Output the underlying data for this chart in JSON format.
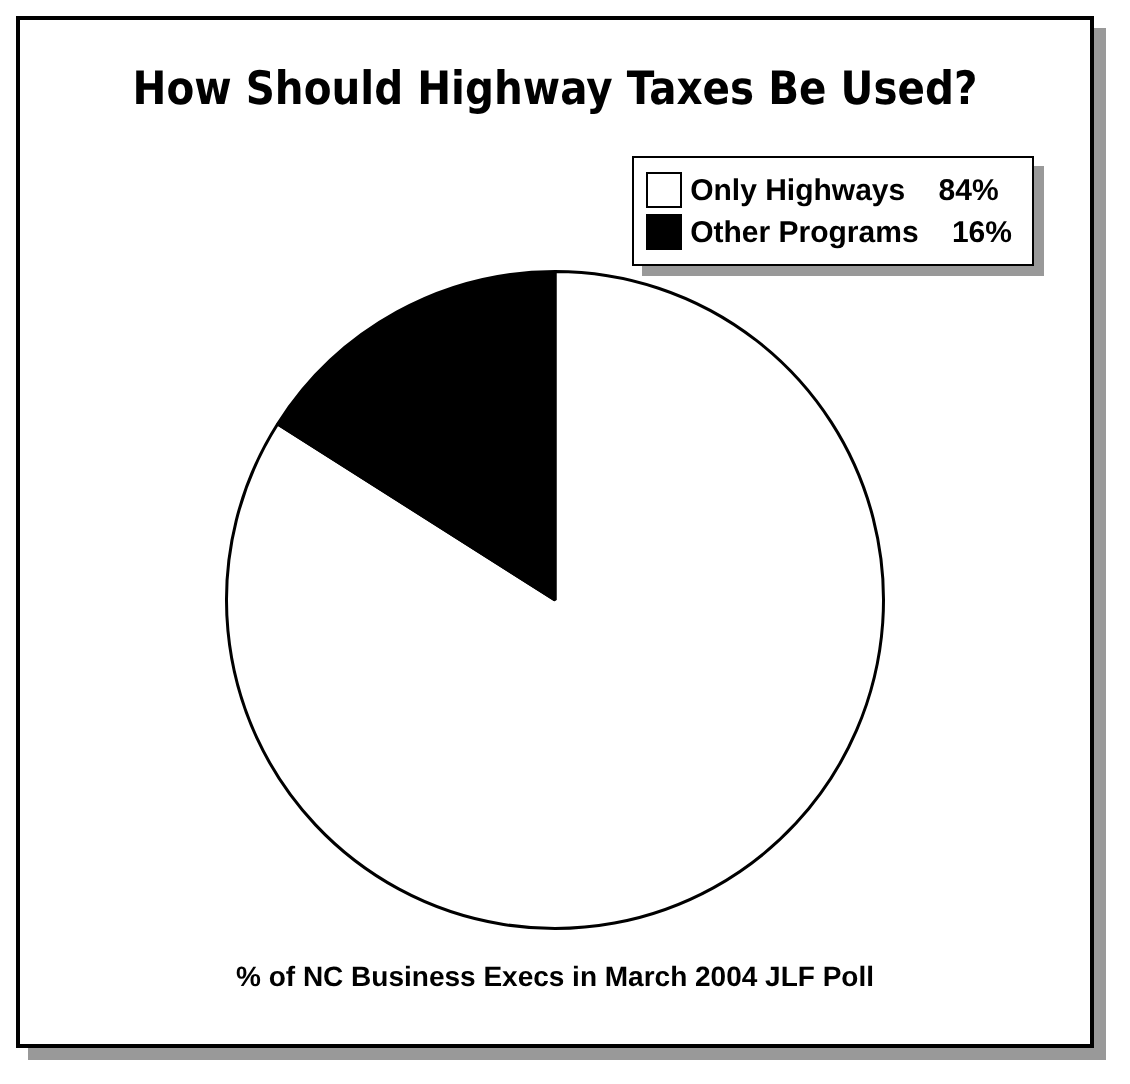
{
  "chart_data": {
    "type": "pie",
    "title": "How Should Highway Taxes Be Used?",
    "categories": [
      "Only Highways",
      "Other Programs"
    ],
    "values": [
      84,
      16
    ],
    "value_labels": [
      "84%",
      "16%"
    ],
    "colors": [
      "#ffffff",
      "#000000"
    ],
    "legend": "top right",
    "annotations": [
      "% of NC Business Execs in March 2004 JLF Poll"
    ]
  }
}
